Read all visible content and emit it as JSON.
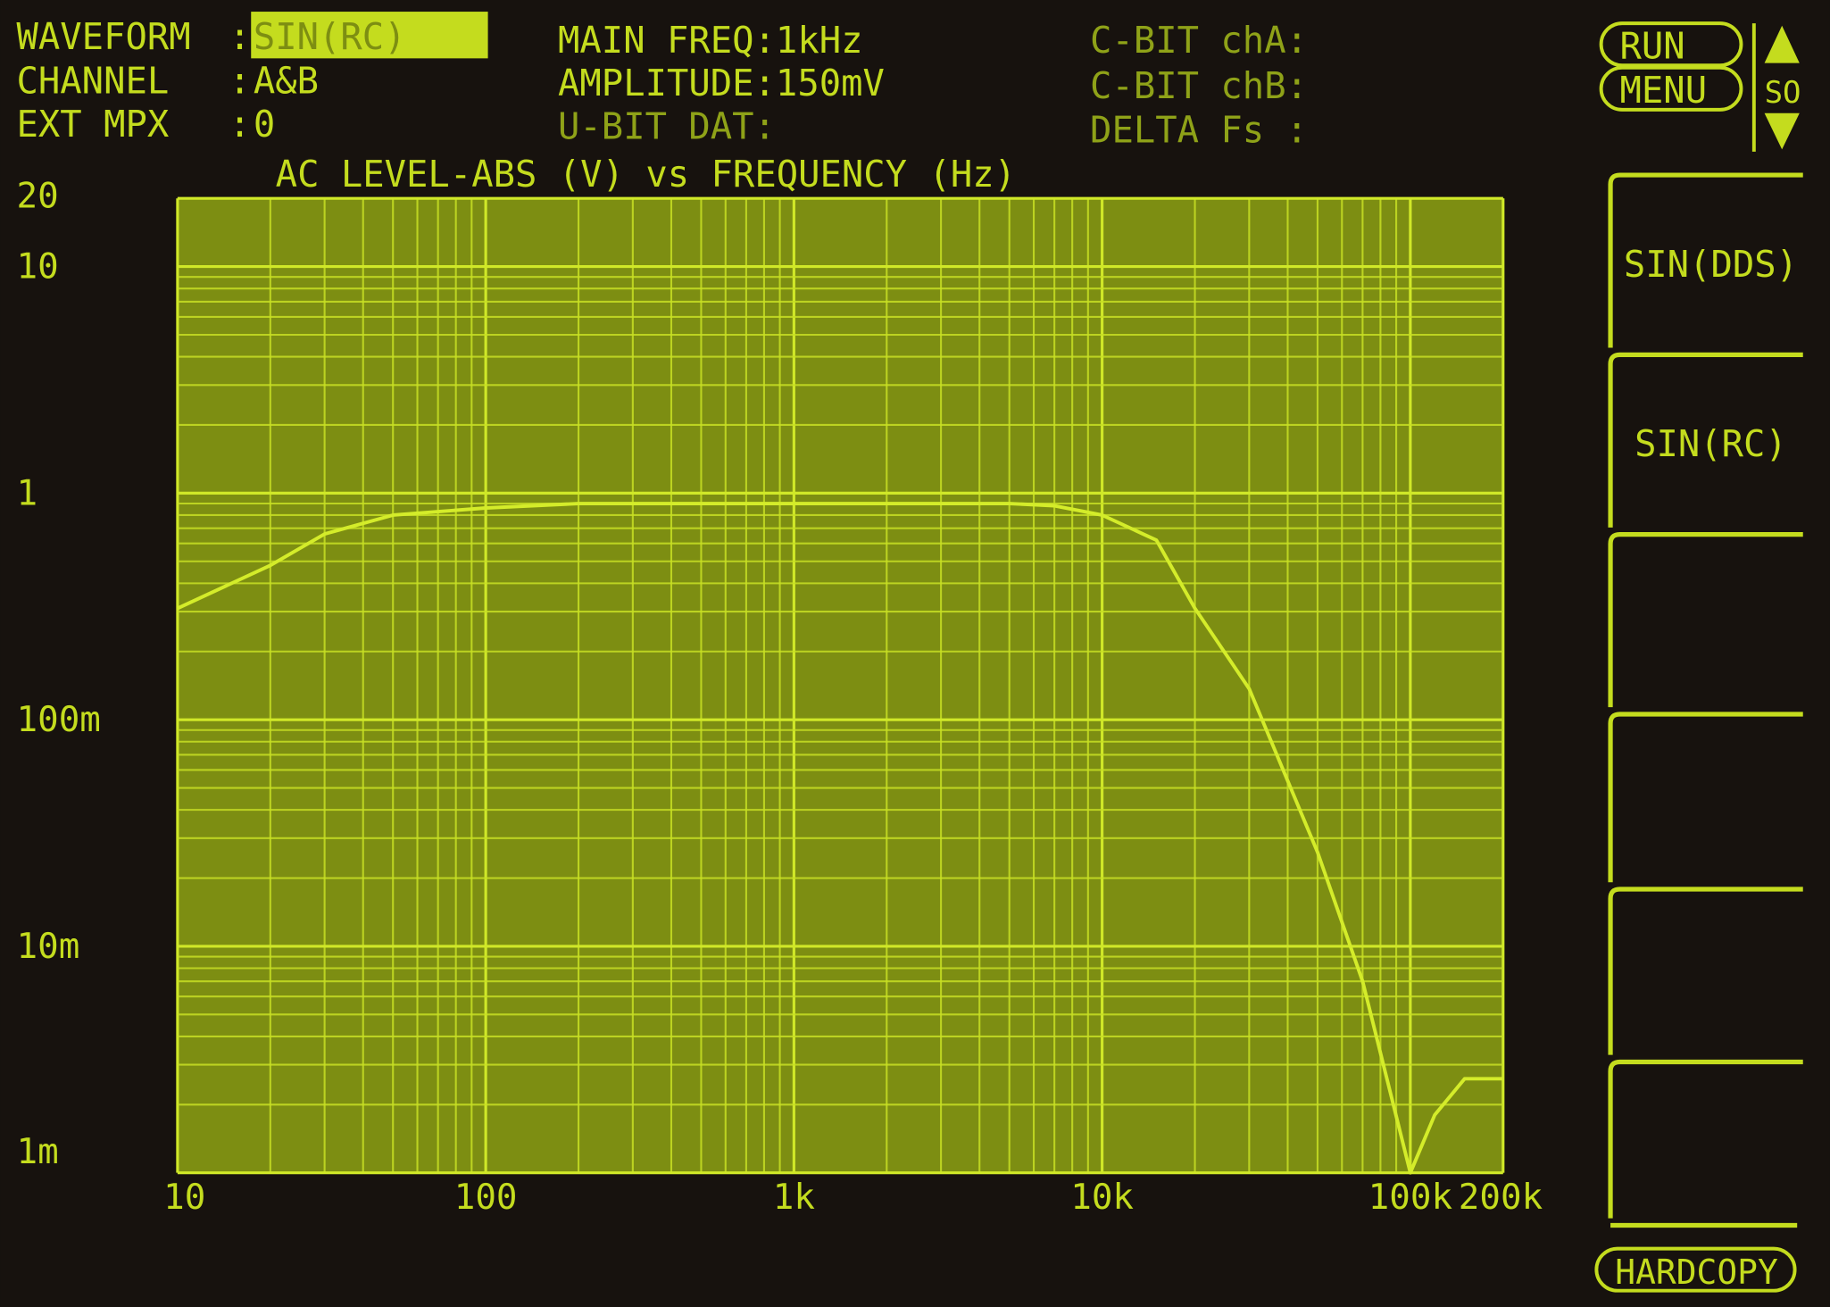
{
  "header": {
    "waveform_label": "WAVEFORM",
    "waveform_value": "SIN(RC)",
    "channel_label": "CHANNEL",
    "channel_value": "A&B",
    "ext_mpx_label": "EXT MPX",
    "ext_mpx_value": "0",
    "main_freq": "MAIN FREQ:1kHz",
    "amplitude": "AMPLITUDE:150mV",
    "u_bit": "U-BIT DAT:",
    "c_bit_a": "C-BIT chA:",
    "c_bit_b": "C-BIT chB:",
    "delta_fs": "DELTA Fs :"
  },
  "buttons": {
    "run": "RUN",
    "menu": "MENU",
    "scroll": "SO",
    "hardcopy": "HARDCOPY"
  },
  "softkeys": [
    "SIN(DDS)",
    "SIN(RC)",
    "",
    "",
    "",
    ""
  ],
  "colors": {
    "background": "#17120e",
    "plot_fill": "#7d8e12",
    "trace": "#d4ec2a",
    "text": "#c4dc1e"
  },
  "chart_data": {
    "type": "line",
    "title": "AC LEVEL-ABS (V) vs FREQUENCY (Hz)",
    "x_scale": "log",
    "y_scale": "log",
    "xlim": [
      10,
      200000
    ],
    "ylim": [
      0.001,
      20
    ],
    "grid": true,
    "x_ticks": [
      10,
      100,
      1000,
      10000,
      100000,
      200000
    ],
    "x_tick_labels": [
      "10",
      "100",
      "1k",
      "10k",
      "100k",
      "200k"
    ],
    "y_ticks": [
      20,
      10,
      1,
      0.1,
      0.01,
      0.001
    ],
    "y_tick_labels": [
      "20",
      "10",
      "1",
      "100m",
      "10m",
      "1m"
    ],
    "series": [
      {
        "x": [
          10,
          20,
          30,
          50,
          100,
          200,
          500,
          1000,
          2000,
          5000,
          7000,
          10000,
          15000,
          20000,
          30000,
          50000,
          70000,
          100000,
          120000,
          150000,
          200000
        ],
        "y": [
          0.31,
          0.48,
          0.66,
          0.8,
          0.86,
          0.9,
          0.9,
          0.9,
          0.9,
          0.9,
          0.88,
          0.8,
          0.62,
          0.31,
          0.137,
          0.026,
          0.007,
          0.001,
          0.0018,
          0.0026,
          0.0026
        ]
      }
    ]
  }
}
